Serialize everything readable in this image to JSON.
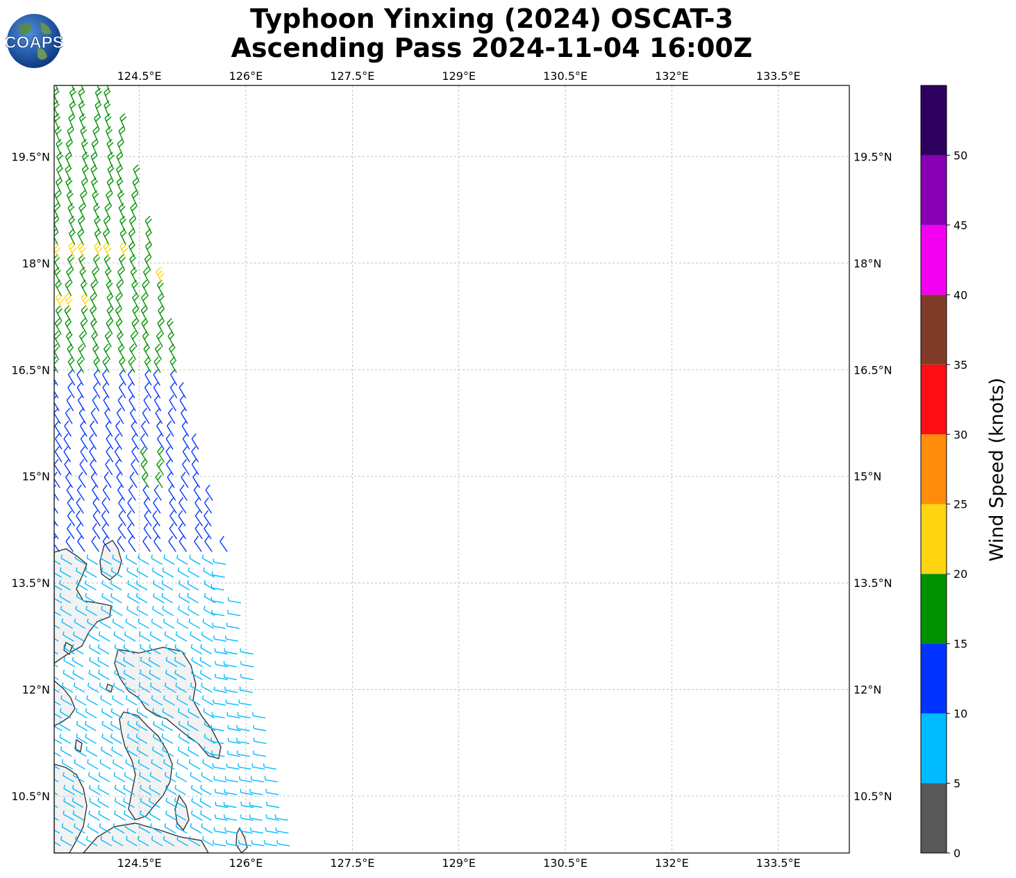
{
  "title": {
    "line1": "Typhoon Yinxing (2024) OSCAT-3",
    "line2": "Ascending Pass 2024-11-04 16:00Z"
  },
  "logo": {
    "text": "COAPS",
    "icon": "globe-icon"
  },
  "map": {
    "lon_range": [
      123.3,
      134.5
    ],
    "lat_range": [
      9.7,
      20.5
    ],
    "lon_ticks": [
      {
        "value": 124.5,
        "label": "124.5°E"
      },
      {
        "value": 126.0,
        "label": "126°E"
      },
      {
        "value": 127.5,
        "label": "127.5°E"
      },
      {
        "value": 129.0,
        "label": "129°E"
      },
      {
        "value": 130.5,
        "label": "130.5°E"
      },
      {
        "value": 132.0,
        "label": "132°E"
      },
      {
        "value": 133.5,
        "label": "133.5°E"
      }
    ],
    "lat_ticks": [
      {
        "value": 19.5,
        "label": "19.5°N"
      },
      {
        "value": 18.0,
        "label": "18°N"
      },
      {
        "value": 16.5,
        "label": "16.5°N"
      },
      {
        "value": 15.0,
        "label": "15°N"
      },
      {
        "value": 13.5,
        "label": "13.5°N"
      },
      {
        "value": 12.0,
        "label": "12°N"
      },
      {
        "value": 10.5,
        "label": "10.5°N"
      }
    ],
    "gridlines": true,
    "land_color": "#f2f2f2",
    "coast_color": "#333333"
  },
  "colorbar": {
    "label": "Wind Speed (knots)",
    "boundaries": [
      0,
      5,
      10,
      15,
      20,
      25,
      30,
      35,
      40,
      45,
      50,
      55
    ],
    "tick_labels": [
      "0",
      "5",
      "10",
      "15",
      "20",
      "25",
      "30",
      "35",
      "40",
      "45",
      "50"
    ],
    "colors": [
      "#595959",
      "#00bbff",
      "#0033ff",
      "#009100",
      "#ffd511",
      "#ff8c0a",
      "#ff0d15",
      "#803c29",
      "#f300f3",
      "#8700b3",
      "#2d005f"
    ]
  },
  "chart_data": {
    "type": "wind_barbs",
    "quantity": "Wind Speed",
    "units": "knots",
    "swath_lon_range": [
      123.3,
      126.6
    ],
    "swath_lat_range": [
      9.7,
      20.5
    ],
    "note_color_classes": "barbs colored by speed bin: 5-10 light blue (south), 10-15 blue (central), 15-20 green (north), 20-25 yellow (few near 17-18N)"
  }
}
